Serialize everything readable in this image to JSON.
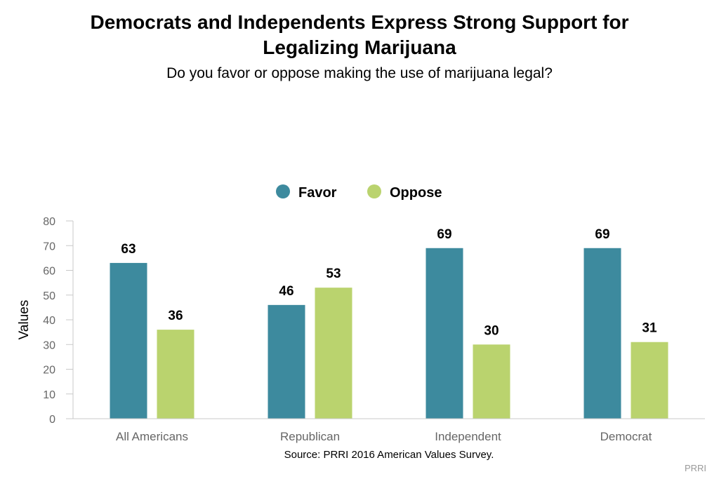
{
  "title_line1": "Democrats and Independents Express Strong Support for",
  "title_line2": "Legalizing Marijuana",
  "subtitle": "Do you favor or oppose making the use of marijuana legal?",
  "source": "Source: PRRI 2016 American Values Survey.",
  "credit": "PRRI",
  "colors": {
    "favor": "#3d8a9e",
    "oppose": "#bad36e",
    "axis": "#c8c8c8",
    "tick_text": "#666666"
  },
  "chart_data": {
    "type": "bar",
    "categories": [
      "All Americans",
      "Republican",
      "Independent",
      "Democrat"
    ],
    "series": [
      {
        "name": "Favor",
        "values": [
          63,
          46,
          69,
          69
        ]
      },
      {
        "name": "Oppose",
        "values": [
          36,
          53,
          30,
          31
        ]
      }
    ],
    "ylabel": "Values",
    "ylim": [
      0,
      80
    ],
    "yticks": [
      0,
      10,
      20,
      30,
      40,
      50,
      60,
      70,
      80
    ],
    "grid": false,
    "legend": "top-center",
    "data_labels": true
  }
}
